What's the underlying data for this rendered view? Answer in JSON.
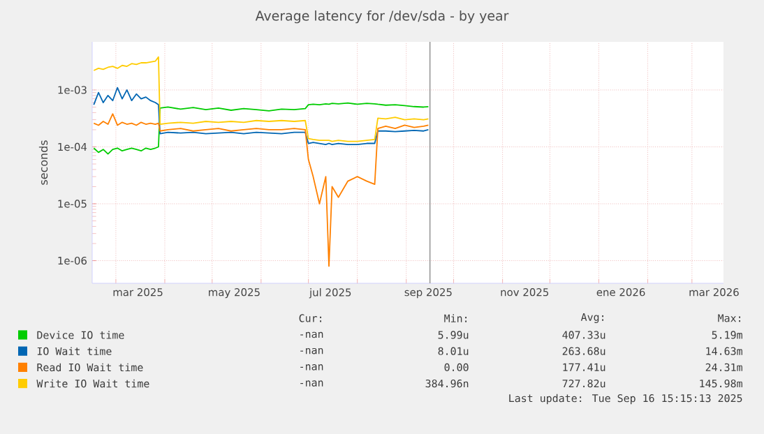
{
  "chart_data": {
    "type": "line",
    "title": "Average latency for /dev/sda - by year",
    "ylabel": "seconds",
    "x": [
      "2025-02-15",
      "2025-02-18",
      "2025-02-21",
      "2025-02-24",
      "2025-02-27",
      "2025-03-02",
      "2025-03-05",
      "2025-03-08",
      "2025-03-11",
      "2025-03-14",
      "2025-03-17",
      "2025-03-20",
      "2025-03-23",
      "2025-03-26",
      "2025-03-28",
      "2025-03-29",
      "2025-04-03",
      "2025-04-11",
      "2025-04-19",
      "2025-04-27",
      "2025-05-05",
      "2025-05-13",
      "2025-05-21",
      "2025-05-29",
      "2025-06-06",
      "2025-06-14",
      "2025-06-22",
      "2025-06-29",
      "2025-07-01",
      "2025-07-04",
      "2025-07-08",
      "2025-07-12",
      "2025-07-14",
      "2025-07-16",
      "2025-07-20",
      "2025-07-26",
      "2025-08-01",
      "2025-08-07",
      "2025-08-12",
      "2025-08-14",
      "2025-08-19",
      "2025-08-25",
      "2025-08-31",
      "2025-09-06",
      "2025-09-12",
      "2025-09-15"
    ],
    "series": [
      {
        "name": "Device IO time",
        "color": "#00cc00",
        "values": [
          9.5e-05,
          8e-05,
          9e-05,
          7.5e-05,
          9e-05,
          9.5e-05,
          8.5e-05,
          9e-05,
          9.5e-05,
          9e-05,
          8.5e-05,
          9.5e-05,
          9e-05,
          9.5e-05,
          0.0001,
          0.00048,
          0.0005,
          0.00046,
          0.00049,
          0.00045,
          0.00048,
          0.00044,
          0.00047,
          0.00045,
          0.00043,
          0.00046,
          0.00045,
          0.00047,
          0.00055,
          0.00056,
          0.00055,
          0.00057,
          0.00056,
          0.00058,
          0.00057,
          0.00059,
          0.00056,
          0.00058,
          0.00057,
          0.00056,
          0.00054,
          0.00055,
          0.00053,
          0.00051,
          0.0005,
          0.00051
        ]
      },
      {
        "name": "IO Wait time",
        "color": "#0066b3",
        "values": [
          0.00055,
          0.0009,
          0.0006,
          0.0008,
          0.00065,
          0.0011,
          0.0007,
          0.001,
          0.00065,
          0.00085,
          0.0007,
          0.00075,
          0.00065,
          0.0006,
          0.00055,
          0.00017,
          0.00018,
          0.000175,
          0.00018,
          0.00017,
          0.000175,
          0.00018,
          0.00017,
          0.00018,
          0.000175,
          0.00017,
          0.00018,
          0.00018,
          0.000115,
          0.00012,
          0.000115,
          0.00011,
          0.000115,
          0.00011,
          0.000115,
          0.00011,
          0.00011,
          0.000115,
          0.000115,
          0.00019,
          0.00019,
          0.000185,
          0.00019,
          0.000195,
          0.00019,
          0.0002
        ]
      },
      {
        "name": "Read IO Wait time",
        "color": "#ff8000",
        "values": [
          0.00026,
          0.00024,
          0.00028,
          0.00025,
          0.00038,
          0.00024,
          0.00027,
          0.00025,
          0.00026,
          0.00024,
          0.00027,
          0.00025,
          0.00026,
          0.00025,
          0.00026,
          0.00019,
          0.0002,
          0.00021,
          0.00019,
          0.0002,
          0.00021,
          0.00019,
          0.0002,
          0.00021,
          0.0002,
          0.0002,
          0.00021,
          0.0002,
          6e-05,
          3e-05,
          1e-05,
          3e-05,
          8e-07,
          2e-05,
          1.3e-05,
          2.5e-05,
          3e-05,
          2.5e-05,
          2.2e-05,
          0.00021,
          0.00023,
          0.00021,
          0.00024,
          0.00022,
          0.00023,
          0.00024
        ]
      },
      {
        "name": "Write IO Wait time",
        "color": "#ffcc00",
        "values": [
          0.0022,
          0.0024,
          0.0023,
          0.0025,
          0.0026,
          0.0024,
          0.0027,
          0.0026,
          0.0029,
          0.0028,
          0.003,
          0.003,
          0.0031,
          0.0032,
          0.0038,
          0.00025,
          0.00026,
          0.00027,
          0.00026,
          0.00028,
          0.00027,
          0.00028,
          0.00027,
          0.00029,
          0.00028,
          0.00029,
          0.00028,
          0.00029,
          0.00014,
          0.000135,
          0.00013,
          0.00013,
          0.00013,
          0.000125,
          0.00013,
          0.000125,
          0.000125,
          0.00013,
          0.000135,
          0.00032,
          0.00031,
          0.00033,
          0.0003,
          0.00031,
          0.0003,
          0.00031
        ]
      }
    ],
    "xlim": [
      "2025-02-14",
      "2026-03-21"
    ],
    "xticks": [
      {
        "value": "2025-03-01",
        "label": null
      },
      {
        "value": "2025-03-15",
        "label": "mar 2025"
      },
      {
        "value": "2025-04-01",
        "label": null
      },
      {
        "value": "2025-05-01",
        "label": null
      },
      {
        "value": "2025-05-15",
        "label": "may 2025"
      },
      {
        "value": "2025-06-01",
        "label": null
      },
      {
        "value": "2025-07-01",
        "label": null
      },
      {
        "value": "2025-07-15",
        "label": "jul 2025"
      },
      {
        "value": "2025-08-01",
        "label": null
      },
      {
        "value": "2025-09-01",
        "label": null
      },
      {
        "value": "2025-09-15",
        "label": "sep 2025"
      },
      {
        "value": "2025-10-01",
        "label": null
      },
      {
        "value": "2025-11-01",
        "label": null
      },
      {
        "value": "2025-11-15",
        "label": "nov 2025"
      },
      {
        "value": "2025-12-01",
        "label": null
      },
      {
        "value": "2026-01-01",
        "label": null
      },
      {
        "value": "2026-01-15",
        "label": "ene 2026"
      },
      {
        "value": "2026-02-01",
        "label": null
      },
      {
        "value": "2026-03-01",
        "label": null
      },
      {
        "value": "2026-03-15",
        "label": "mar 2026"
      }
    ],
    "ylim": [
      4e-07,
      0.007
    ],
    "yticks": [
      {
        "value": 1e-06,
        "label": "1e-06"
      },
      {
        "value": 1e-05,
        "label": "1e-05"
      },
      {
        "value": 0.0001,
        "label": "1e-04"
      },
      {
        "value": 0.001,
        "label": "1e-03"
      }
    ],
    "log": "y",
    "grid": true,
    "legend": "bottom",
    "marker": "none",
    "line_style": "solid",
    "ref_lines": [
      {
        "axis": "x",
        "value": "2025-09-16",
        "color": "#999999"
      }
    ],
    "annotations": [
      "Cur:",
      "Min:",
      "Avg:",
      "Max:",
      "-nan",
      "5.99u",
      "407.33u",
      "5.19m",
      "-nan",
      "8.01u",
      "263.68u",
      "14.63m",
      "-nan",
      "0.00",
      "177.41u",
      "24.31m",
      "-nan",
      "384.96n",
      "727.82u",
      "145.98m",
      "Last update: Tue Sep 16 15:15:13 2025"
    ]
  }
}
